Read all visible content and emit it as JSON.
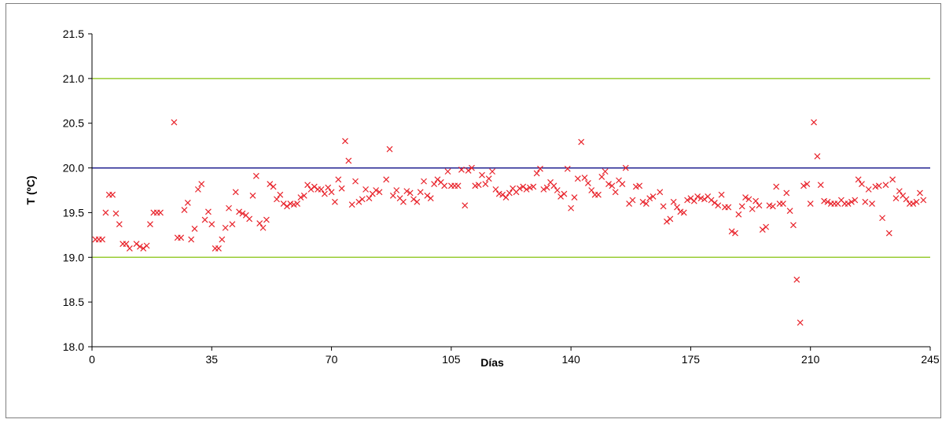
{
  "chart_data": {
    "type": "scatter",
    "xlabel": "Días",
    "ylabel": "T (ºC)",
    "xlim": [
      0,
      245
    ],
    "ylim": [
      18.0,
      21.5
    ],
    "xticks": [
      0,
      35,
      70,
      105,
      140,
      175,
      210,
      245
    ],
    "yticks": [
      "18.0",
      "18.5",
      "19.0",
      "19.5",
      "20.0",
      "20.5",
      "21.0",
      "21.5"
    ],
    "grid": false,
    "marker": "x",
    "marker_color": "#e8232b",
    "reference_lines": [
      {
        "y": 21.0,
        "color": "#99cc33"
      },
      {
        "y": 20.0,
        "color": "#1a1a8c"
      },
      {
        "y": 19.0,
        "color": "#99cc33"
      }
    ],
    "points": [
      [
        1,
        19.2
      ],
      [
        2,
        19.2
      ],
      [
        3,
        19.2
      ],
      [
        4,
        19.5
      ],
      [
        5,
        19.7
      ],
      [
        6,
        19.7
      ],
      [
        7,
        19.49
      ],
      [
        8,
        19.37
      ],
      [
        9,
        19.15
      ],
      [
        10,
        19.15
      ],
      [
        11,
        19.1
      ],
      [
        13,
        19.15
      ],
      [
        14,
        19.12
      ],
      [
        15,
        19.1
      ],
      [
        16,
        19.13
      ],
      [
        17,
        19.37
      ],
      [
        18,
        19.5
      ],
      [
        19,
        19.5
      ],
      [
        20,
        19.5
      ],
      [
        24,
        20.51
      ],
      [
        25,
        19.22
      ],
      [
        26,
        19.22
      ],
      [
        27,
        19.53
      ],
      [
        28,
        19.61
      ],
      [
        29,
        19.2
      ],
      [
        30,
        19.32
      ],
      [
        31,
        19.76
      ],
      [
        32,
        19.82
      ],
      [
        33,
        19.42
      ],
      [
        34,
        19.51
      ],
      [
        35,
        19.37
      ],
      [
        36,
        19.1
      ],
      [
        37,
        19.1
      ],
      [
        38,
        19.2
      ],
      [
        39,
        19.33
      ],
      [
        40,
        19.55
      ],
      [
        41,
        19.37
      ],
      [
        42,
        19.73
      ],
      [
        43,
        19.51
      ],
      [
        44,
        19.49
      ],
      [
        45,
        19.47
      ],
      [
        46,
        19.43
      ],
      [
        47,
        19.69
      ],
      [
        48,
        19.91
      ],
      [
        49,
        19.38
      ],
      [
        50,
        19.33
      ],
      [
        51,
        19.42
      ],
      [
        52,
        19.82
      ],
      [
        53,
        19.79
      ],
      [
        54,
        19.65
      ],
      [
        55,
        19.7
      ],
      [
        56,
        19.6
      ],
      [
        57,
        19.57
      ],
      [
        58,
        19.6
      ],
      [
        59,
        19.59
      ],
      [
        60,
        19.6
      ],
      [
        61,
        19.67
      ],
      [
        62,
        19.69
      ],
      [
        63,
        19.81
      ],
      [
        64,
        19.76
      ],
      [
        65,
        19.79
      ],
      [
        66,
        19.76
      ],
      [
        67,
        19.76
      ],
      [
        68,
        19.71
      ],
      [
        69,
        19.78
      ],
      [
        70,
        19.73
      ],
      [
        71,
        19.62
      ],
      [
        72,
        19.87
      ],
      [
        73,
        19.77
      ],
      [
        74,
        20.3
      ],
      [
        75,
        20.08
      ],
      [
        76,
        19.59
      ],
      [
        77,
        19.85
      ],
      [
        78,
        19.62
      ],
      [
        79,
        19.65
      ],
      [
        80,
        19.76
      ],
      [
        81,
        19.66
      ],
      [
        82,
        19.71
      ],
      [
        83,
        19.75
      ],
      [
        84,
        19.73
      ],
      [
        86,
        19.87
      ],
      [
        87,
        20.21
      ],
      [
        88,
        19.69
      ],
      [
        89,
        19.75
      ],
      [
        90,
        19.66
      ],
      [
        91,
        19.62
      ],
      [
        92,
        19.74
      ],
      [
        93,
        19.72
      ],
      [
        94,
        19.65
      ],
      [
        95,
        19.62
      ],
      [
        96,
        19.73
      ],
      [
        97,
        19.85
      ],
      [
        98,
        19.69
      ],
      [
        99,
        19.66
      ],
      [
        100,
        19.82
      ],
      [
        101,
        19.87
      ],
      [
        102,
        19.84
      ],
      [
        103,
        19.8
      ],
      [
        104,
        19.96
      ],
      [
        105,
        19.8
      ],
      [
        106,
        19.8
      ],
      [
        107,
        19.8
      ],
      [
        108,
        19.98
      ],
      [
        109,
        19.58
      ],
      [
        110,
        19.97
      ],
      [
        111,
        20.0
      ],
      [
        112,
        19.8
      ],
      [
        113,
        19.81
      ],
      [
        114,
        19.92
      ],
      [
        115,
        19.82
      ],
      [
        116,
        19.88
      ],
      [
        117,
        19.96
      ],
      [
        118,
        19.76
      ],
      [
        119,
        19.71
      ],
      [
        120,
        19.7
      ],
      [
        121,
        19.67
      ],
      [
        122,
        19.72
      ],
      [
        123,
        19.77
      ],
      [
        124,
        19.73
      ],
      [
        125,
        19.77
      ],
      [
        126,
        19.79
      ],
      [
        127,
        19.76
      ],
      [
        128,
        19.78
      ],
      [
        129,
        19.79
      ],
      [
        130,
        19.94
      ],
      [
        131,
        19.99
      ],
      [
        132,
        19.76
      ],
      [
        133,
        19.78
      ],
      [
        134,
        19.84
      ],
      [
        135,
        19.8
      ],
      [
        136,
        19.75
      ],
      [
        137,
        19.68
      ],
      [
        138,
        19.71
      ],
      [
        139,
        19.99
      ],
      [
        140,
        19.55
      ],
      [
        141,
        19.67
      ],
      [
        142,
        19.88
      ],
      [
        143,
        20.29
      ],
      [
        144,
        19.89
      ],
      [
        145,
        19.83
      ],
      [
        146,
        19.75
      ],
      [
        147,
        19.7
      ],
      [
        148,
        19.7
      ],
      [
        149,
        19.9
      ],
      [
        150,
        19.96
      ],
      [
        151,
        19.82
      ],
      [
        152,
        19.8
      ],
      [
        153,
        19.73
      ],
      [
        154,
        19.86
      ],
      [
        155,
        19.82
      ],
      [
        156,
        20.0
      ],
      [
        157,
        19.6
      ],
      [
        158,
        19.64
      ],
      [
        159,
        19.79
      ],
      [
        160,
        19.8
      ],
      [
        161,
        19.62
      ],
      [
        162,
        19.6
      ],
      [
        163,
        19.66
      ],
      [
        164,
        19.68
      ],
      [
        166,
        19.73
      ],
      [
        167,
        19.57
      ],
      [
        168,
        19.4
      ],
      [
        169,
        19.43
      ],
      [
        170,
        19.62
      ],
      [
        171,
        19.56
      ],
      [
        172,
        19.51
      ],
      [
        173,
        19.5
      ],
      [
        174,
        19.64
      ],
      [
        175,
        19.66
      ],
      [
        176,
        19.63
      ],
      [
        177,
        19.68
      ],
      [
        178,
        19.66
      ],
      [
        179,
        19.65
      ],
      [
        180,
        19.68
      ],
      [
        181,
        19.64
      ],
      [
        182,
        19.61
      ],
      [
        183,
        19.58
      ],
      [
        184,
        19.7
      ],
      [
        185,
        19.56
      ],
      [
        186,
        19.56
      ],
      [
        187,
        19.29
      ],
      [
        188,
        19.27
      ],
      [
        189,
        19.48
      ],
      [
        190,
        19.57
      ],
      [
        191,
        19.67
      ],
      [
        192,
        19.65
      ],
      [
        193,
        19.54
      ],
      [
        194,
        19.63
      ],
      [
        195,
        19.58
      ],
      [
        196,
        19.31
      ],
      [
        197,
        19.34
      ],
      [
        198,
        19.58
      ],
      [
        199,
        19.57
      ],
      [
        200,
        19.79
      ],
      [
        201,
        19.6
      ],
      [
        202,
        19.6
      ],
      [
        203,
        19.72
      ],
      [
        204,
        19.52
      ],
      [
        205,
        19.36
      ],
      [
        206,
        18.75
      ],
      [
        207,
        18.27
      ],
      [
        208,
        19.8
      ],
      [
        209,
        19.82
      ],
      [
        210,
        19.6
      ],
      [
        211,
        20.51
      ],
      [
        212,
        20.13
      ],
      [
        213,
        19.81
      ],
      [
        214,
        19.63
      ],
      [
        215,
        19.62
      ],
      [
        216,
        19.6
      ],
      [
        217,
        19.6
      ],
      [
        218,
        19.6
      ],
      [
        219,
        19.64
      ],
      [
        220,
        19.6
      ],
      [
        221,
        19.6
      ],
      [
        222,
        19.62
      ],
      [
        223,
        19.64
      ],
      [
        224,
        19.87
      ],
      [
        225,
        19.82
      ],
      [
        226,
        19.62
      ],
      [
        227,
        19.76
      ],
      [
        228,
        19.6
      ],
      [
        229,
        19.79
      ],
      [
        230,
        19.8
      ],
      [
        231,
        19.44
      ],
      [
        232,
        19.81
      ],
      [
        233,
        19.27
      ],
      [
        234,
        19.87
      ],
      [
        235,
        19.66
      ],
      [
        236,
        19.74
      ],
      [
        237,
        19.69
      ],
      [
        238,
        19.65
      ],
      [
        239,
        19.6
      ],
      [
        240,
        19.6
      ],
      [
        241,
        19.62
      ],
      [
        242,
        19.72
      ],
      [
        243,
        19.64
      ]
    ]
  }
}
